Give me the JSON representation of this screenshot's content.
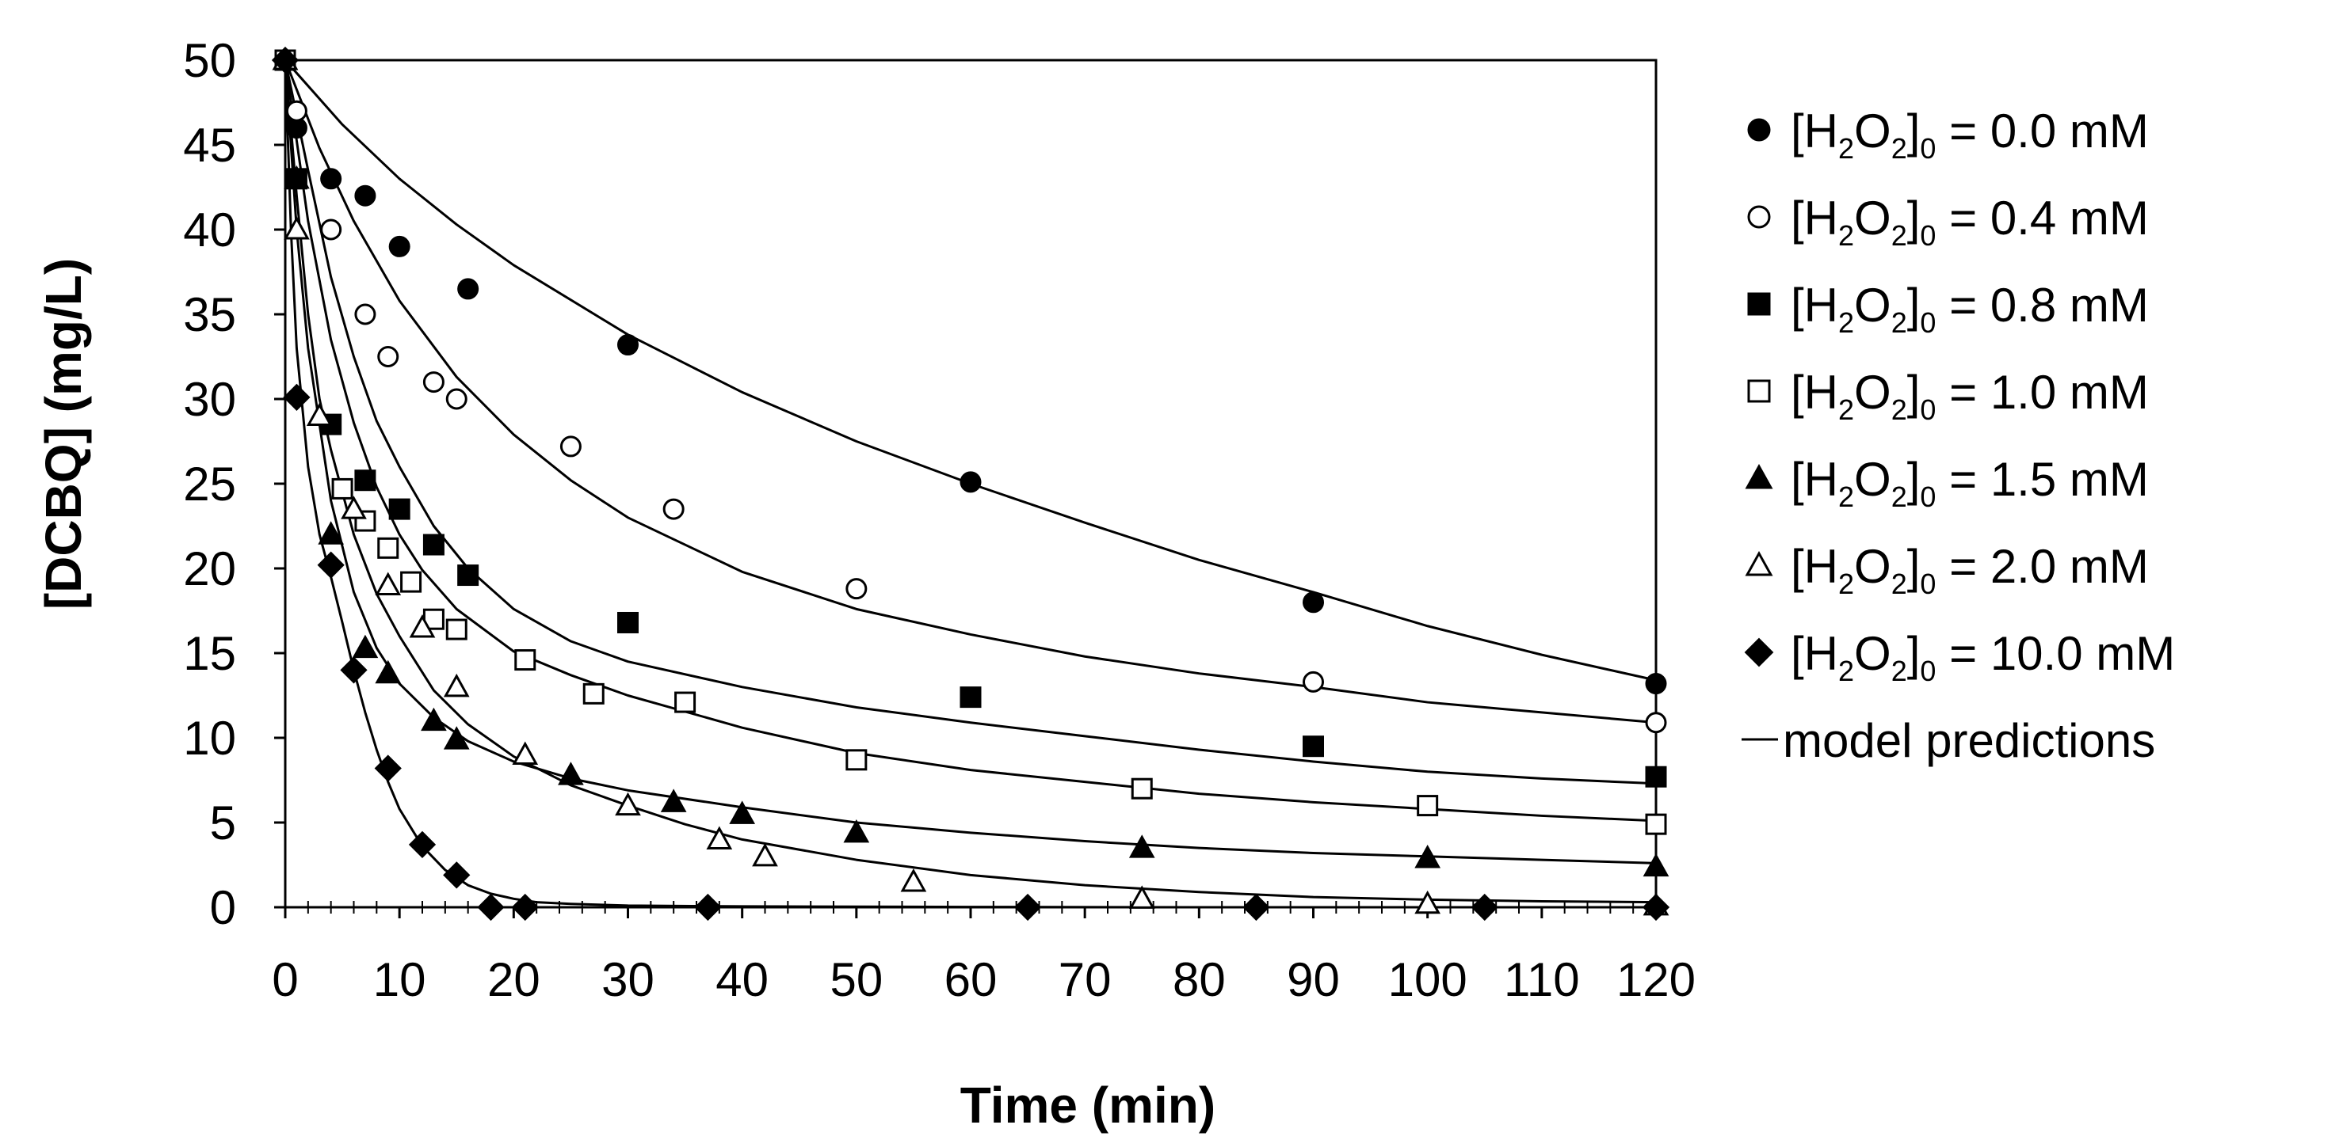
{
  "chart_data": {
    "type": "scatter",
    "title": "",
    "xlabel": "Time (min)",
    "ylabel": "[DCBQ] (mg/L)",
    "xlim": [
      0,
      120
    ],
    "ylim": [
      0,
      50
    ],
    "x_ticks": [
      0,
      10,
      20,
      30,
      40,
      50,
      60,
      70,
      80,
      90,
      100,
      110,
      120
    ],
    "y_ticks": [
      0,
      5,
      10,
      15,
      20,
      25,
      30,
      35,
      40,
      45,
      50
    ],
    "x_tick_labels": [
      "0",
      "10",
      "20",
      "30",
      "40",
      "50",
      "60",
      "70",
      "80",
      "90",
      "100",
      "110",
      "120"
    ],
    "y_tick_labels": [
      "0",
      "5",
      "10",
      "15",
      "20",
      "25",
      "30",
      "35",
      "40",
      "45",
      "50"
    ],
    "grid": false,
    "legend_position": "right",
    "legend_line_label": "model predictions",
    "series": [
      {
        "name": "[H2O2]0 = 0.0 mM",
        "legend_prefix": "[H",
        "legend_sub1": "2",
        "legend_mid": "O",
        "legend_sub2": "2",
        "legend_close": "]",
        "legend_sub3": "0",
        "legend_value": " = 0.0 mM",
        "marker": "filled-circle",
        "x": [
          0,
          1,
          4,
          7,
          10,
          16,
          30,
          60,
          90,
          120
        ],
        "y": [
          50,
          46,
          43,
          42,
          39,
          36.5,
          33.2,
          25.1,
          18,
          13.2
        ],
        "model_x": [
          0,
          5,
          10,
          15,
          20,
          30,
          40,
          50,
          60,
          70,
          80,
          90,
          100,
          110,
          120
        ],
        "model_y": [
          50,
          46.2,
          43,
          40.3,
          37.9,
          33.8,
          30.4,
          27.5,
          25,
          22.7,
          20.5,
          18.6,
          16.6,
          14.9,
          13.4
        ]
      },
      {
        "name": "[H2O2]0 = 0.4 mM",
        "legend_prefix": "[H",
        "legend_sub1": "2",
        "legend_mid": "O",
        "legend_sub2": "2",
        "legend_close": "]",
        "legend_sub3": "0",
        "legend_value": " = 0.4 mM",
        "marker": "open-circle",
        "x": [
          0,
          1,
          4,
          7,
          9,
          13,
          15,
          25,
          34,
          50,
          90,
          120
        ],
        "y": [
          50,
          47,
          40,
          35,
          32.5,
          31,
          30,
          27.2,
          23.5,
          18.8,
          13.3,
          10.9
        ],
        "model_x": [
          0,
          3,
          6,
          10,
          15,
          20,
          25,
          30,
          40,
          50,
          60,
          70,
          80,
          90,
          100,
          110,
          120
        ],
        "model_y": [
          50,
          44.8,
          40.5,
          35.8,
          31.3,
          27.9,
          25.2,
          23,
          19.8,
          17.6,
          16.1,
          14.8,
          13.8,
          13,
          12.1,
          11.5,
          10.9
        ]
      },
      {
        "name": "[H2O2]0 = 0.8 mM",
        "legend_prefix": "[H",
        "legend_sub1": "2",
        "legend_mid": "O",
        "legend_sub2": "2",
        "legend_close": "]",
        "legend_sub3": "0",
        "legend_value": " = 0.8 mM",
        "marker": "filled-square",
        "x": [
          0,
          1,
          4,
          7,
          10,
          13,
          16,
          30,
          60,
          90,
          120
        ],
        "y": [
          50,
          43,
          28.5,
          25.2,
          23.5,
          21.4,
          19.6,
          16.8,
          12.4,
          9.5,
          7.7
        ],
        "model_x": [
          0,
          2,
          4,
          6,
          8,
          10,
          13,
          16,
          20,
          25,
          30,
          40,
          50,
          60,
          70,
          80,
          90,
          100,
          110,
          120
        ],
        "model_y": [
          50,
          43.5,
          37.2,
          32.5,
          28.7,
          26,
          22.5,
          20,
          17.6,
          15.7,
          14.5,
          13,
          11.8,
          10.9,
          10.1,
          9.3,
          8.6,
          8,
          7.6,
          7.3
        ]
      },
      {
        "name": "[H2O2]0 = 1.0 mM",
        "legend_prefix": "[H",
        "legend_sub1": "2",
        "legend_mid": "O",
        "legend_sub2": "2",
        "legend_close": "]",
        "legend_sub3": "0",
        "legend_value": " = 1.0 mM",
        "marker": "open-square",
        "x": [
          0,
          5,
          7,
          9,
          11,
          13,
          15,
          21,
          27,
          35,
          50,
          75,
          100,
          120
        ],
        "y": [
          50,
          24.7,
          22.8,
          21.2,
          19.2,
          17,
          16.4,
          14.6,
          12.6,
          12.1,
          8.7,
          7,
          6,
          4.9
        ],
        "model_x": [
          0,
          2,
          4,
          6,
          8,
          10,
          12,
          15,
          20,
          25,
          30,
          40,
          50,
          60,
          70,
          80,
          90,
          100,
          110,
          120
        ],
        "model_y": [
          50,
          40.5,
          33.5,
          28.6,
          24.8,
          22,
          19.9,
          17.6,
          15.1,
          13.7,
          12.5,
          10.6,
          9.1,
          8.1,
          7.4,
          6.7,
          6.2,
          5.8,
          5.4,
          5.1
        ]
      },
      {
        "name": "[H2O2]0 = 1.5 mM",
        "legend_prefix": "[H",
        "legend_sub1": "2",
        "legend_mid": "O",
        "legend_sub2": "2",
        "legend_close": "]",
        "legend_sub3": "0",
        "legend_value": " = 1.5 mM",
        "marker": "filled-triangle",
        "x": [
          0,
          1,
          4,
          7,
          9,
          13,
          15,
          25,
          34,
          40,
          50,
          75,
          100,
          120
        ],
        "y": [
          50,
          43,
          22,
          15.3,
          13.8,
          11,
          9.9,
          7.8,
          6.2,
          5.5,
          4.4,
          3.5,
          2.9,
          2.4
        ],
        "model_x": [
          0,
          1,
          2,
          4,
          6,
          8,
          10,
          13,
          16,
          20,
          25,
          30,
          40,
          50,
          60,
          70,
          80,
          90,
          100,
          110,
          120
        ],
        "model_y": [
          50,
          40,
          33,
          24,
          18.6,
          15.3,
          13.2,
          11.2,
          9.8,
          8.6,
          7.6,
          6.9,
          5.9,
          5,
          4.4,
          3.9,
          3.5,
          3.2,
          3,
          2.8,
          2.6
        ]
      },
      {
        "name": "[H2O2]0 = 2.0 mM",
        "legend_prefix": "[H",
        "legend_sub1": "2",
        "legend_mid": "O",
        "legend_sub2": "2",
        "legend_close": "]",
        "legend_sub3": "0",
        "legend_value": " = 2.0 mM",
        "marker": "open-triangle",
        "x": [
          0,
          1,
          3,
          6,
          9,
          12,
          15,
          21,
          30,
          38,
          42,
          55,
          75,
          100,
          120
        ],
        "y": [
          50,
          40,
          29,
          23.5,
          19,
          16.5,
          13,
          9,
          6,
          4,
          3,
          1.5,
          0.5,
          0.2,
          0.1
        ],
        "model_x": [
          0,
          1,
          2,
          3,
          4,
          6,
          8,
          10,
          13,
          16,
          20,
          25,
          30,
          35,
          40,
          50,
          60,
          70,
          80,
          90,
          100,
          110,
          120
        ],
        "model_y": [
          50,
          42,
          35,
          30,
          27,
          22,
          18.5,
          16,
          12.8,
          10.8,
          8.9,
          7.2,
          6,
          4.9,
          4,
          2.8,
          1.9,
          1.3,
          0.9,
          0.6,
          0.45,
          0.35,
          0.3
        ]
      },
      {
        "name": "[H2O2]0 = 10.0 mM",
        "legend_prefix": "[H",
        "legend_sub1": "2",
        "legend_mid": "O",
        "legend_sub2": "2",
        "legend_close": "]",
        "legend_sub3": "0",
        "legend_value": " = 10.0 mM",
        "marker": "filled-diamond",
        "x": [
          0,
          1,
          4,
          6,
          9,
          12,
          15,
          18,
          21,
          37,
          65,
          85,
          105,
          120
        ],
        "y": [
          50,
          30.1,
          20.2,
          14,
          8.2,
          3.7,
          1.9,
          0,
          0,
          0,
          0,
          0,
          0,
          0
        ],
        "model_x": [
          0,
          0.5,
          1,
          2,
          3,
          4,
          5,
          6,
          7,
          8,
          9,
          10,
          12,
          14,
          16,
          18,
          20,
          22,
          25,
          30,
          40,
          60,
          80,
          100,
          120
        ],
        "model_y": [
          50,
          40,
          33,
          26,
          22,
          19.5,
          16.8,
          14,
          11.5,
          9.3,
          7.4,
          5.8,
          3.6,
          2.2,
          1.3,
          0.8,
          0.5,
          0.3,
          0.2,
          0.1,
          0.05,
          0.02,
          0,
          0,
          0
        ]
      }
    ]
  }
}
